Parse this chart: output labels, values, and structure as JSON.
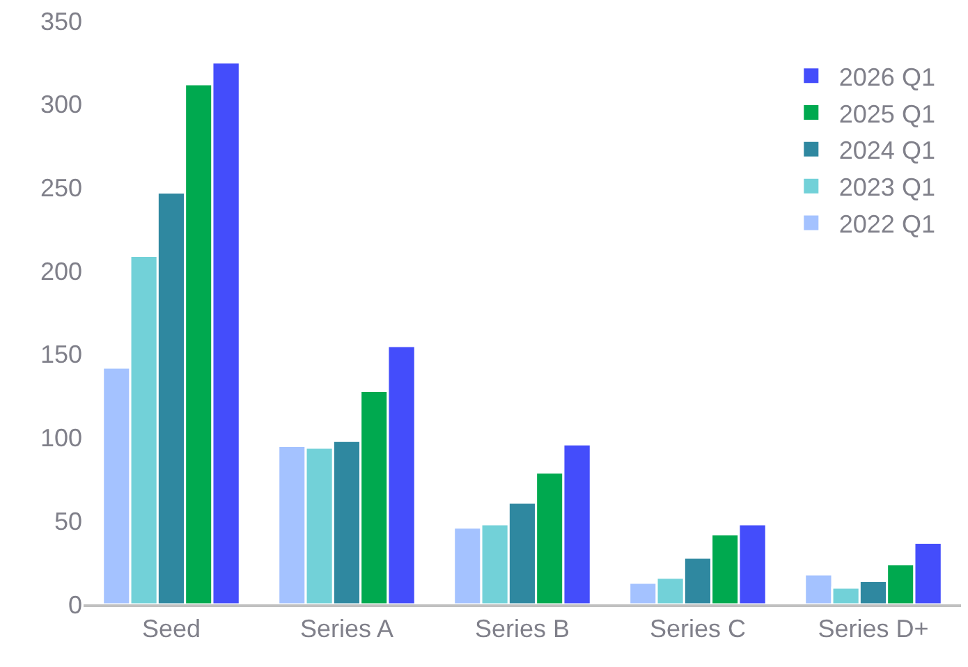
{
  "chart_data": {
    "type": "bar",
    "categories": [
      "Seed",
      "Series A",
      "Series B",
      "Series C",
      "Series D+"
    ],
    "series": [
      {
        "name": "2022 Q1",
        "color": "#a4c2ff",
        "values": [
          142,
          95,
          46,
          13,
          18
        ]
      },
      {
        "name": "2023 Q1",
        "color": "#72d1d8",
        "values": [
          209,
          94,
          48,
          16,
          10
        ]
      },
      {
        "name": "2024 Q1",
        "color": "#2f88a0",
        "values": [
          247,
          98,
          61,
          28,
          14
        ]
      },
      {
        "name": "2025 Q1",
        "color": "#00a94f",
        "values": [
          312,
          128,
          79,
          42,
          24
        ]
      },
      {
        "name": "2026 Q1",
        "color": "#444dfb",
        "values": [
          325,
          155,
          96,
          48,
          37
        ]
      }
    ],
    "ylim": [
      0,
      350
    ],
    "yticks": [
      0,
      50,
      100,
      150,
      200,
      250,
      300,
      350
    ],
    "legend": "right"
  }
}
